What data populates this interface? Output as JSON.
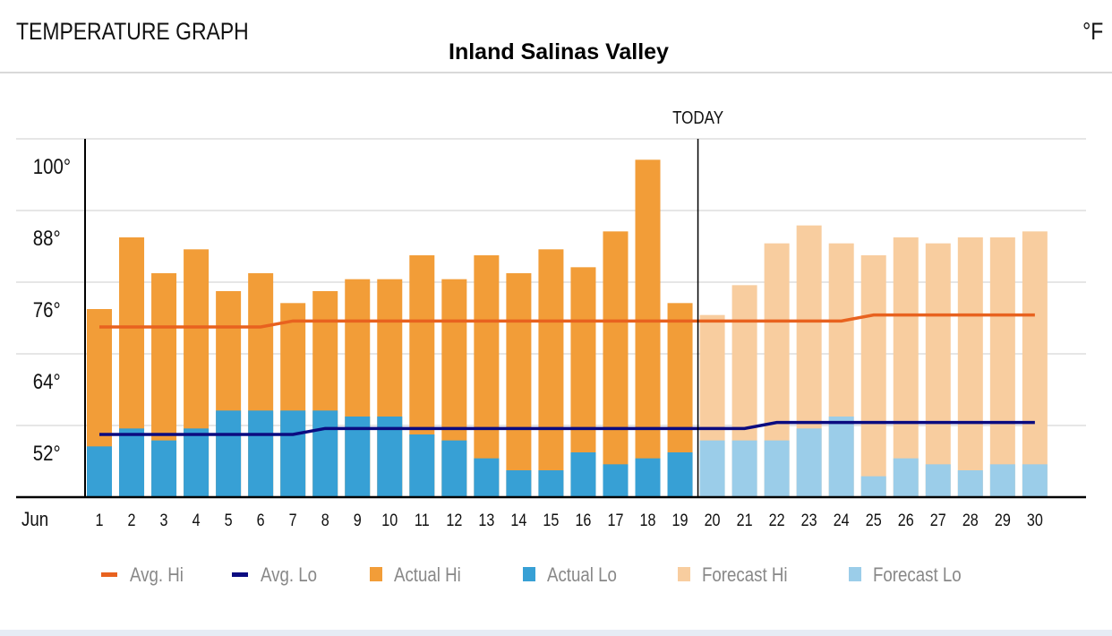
{
  "header": {
    "title": "TEMPERATURE GRAPH",
    "unit": "°F"
  },
  "colors": {
    "actual_hi": "#f29d38",
    "actual_lo": "#37a0d5",
    "forecast_hi": "#f8cd9f",
    "forecast_lo": "#9bcde9",
    "avg_hi": "#e8621f",
    "avg_lo": "#0b0b80",
    "grid": "#dddddd"
  },
  "chart_data": {
    "type": "bar",
    "title": "Inland Salinas Valley",
    "xlabel": "Jun",
    "ylabel": "",
    "today_label": "TODAY",
    "today_day": 20,
    "ylim": [
      44.5,
      104.5
    ],
    "yticks": [
      52,
      64,
      76,
      88,
      100
    ],
    "ytick_labels": [
      "52°",
      "64°",
      "76°",
      "88°",
      "100°"
    ],
    "grid": true,
    "legend_position": "bottom",
    "categories": [
      "1",
      "2",
      "3",
      "4",
      "5",
      "6",
      "7",
      "8",
      "9",
      "10",
      "11",
      "12",
      "13",
      "14",
      "15",
      "16",
      "17",
      "18",
      "19",
      "20",
      "21",
      "22",
      "23",
      "24",
      "25",
      "26",
      "27",
      "28",
      "29",
      "30"
    ],
    "series": [
      {
        "name": "Actual Hi",
        "kind": "bar",
        "values": [
          76,
          88,
          82,
          86,
          79,
          82,
          77,
          79,
          81,
          81,
          85,
          81,
          85,
          82,
          86,
          83,
          89,
          101,
          77,
          null,
          null,
          null,
          null,
          null,
          null,
          null,
          null,
          null,
          null,
          null
        ]
      },
      {
        "name": "Actual Lo",
        "kind": "bar",
        "values": [
          53,
          56,
          54,
          56,
          59,
          59,
          59,
          59,
          58,
          58,
          55,
          54,
          51,
          49,
          49,
          52,
          50,
          51,
          52,
          null,
          null,
          null,
          null,
          null,
          null,
          null,
          null,
          null,
          null,
          null
        ]
      },
      {
        "name": "Forecast Hi",
        "kind": "bar",
        "values": [
          null,
          null,
          null,
          null,
          null,
          null,
          null,
          null,
          null,
          null,
          null,
          null,
          null,
          null,
          null,
          null,
          null,
          null,
          null,
          75,
          80,
          87,
          90,
          87,
          85,
          88,
          87,
          88,
          88,
          89
        ]
      },
      {
        "name": "Forecast Lo",
        "kind": "bar",
        "values": [
          null,
          null,
          null,
          null,
          null,
          null,
          null,
          null,
          null,
          null,
          null,
          null,
          null,
          null,
          null,
          null,
          null,
          null,
          null,
          54,
          54,
          54,
          56,
          58,
          48,
          51,
          50,
          49,
          50,
          50
        ]
      },
      {
        "name": "Avg. Hi",
        "kind": "line",
        "values": [
          73,
          73,
          73,
          73,
          73,
          73,
          74,
          74,
          74,
          74,
          74,
          74,
          74,
          74,
          74,
          74,
          74,
          74,
          74,
          74,
          74,
          74,
          74,
          74,
          75,
          75,
          75,
          75,
          75,
          75
        ]
      },
      {
        "name": "Avg. Lo",
        "kind": "line",
        "values": [
          55,
          55,
          55,
          55,
          55,
          55,
          55,
          56,
          56,
          56,
          56,
          56,
          56,
          56,
          56,
          56,
          56,
          56,
          56,
          56,
          56,
          57,
          57,
          57,
          57,
          57,
          57,
          57,
          57,
          57
        ]
      }
    ]
  }
}
